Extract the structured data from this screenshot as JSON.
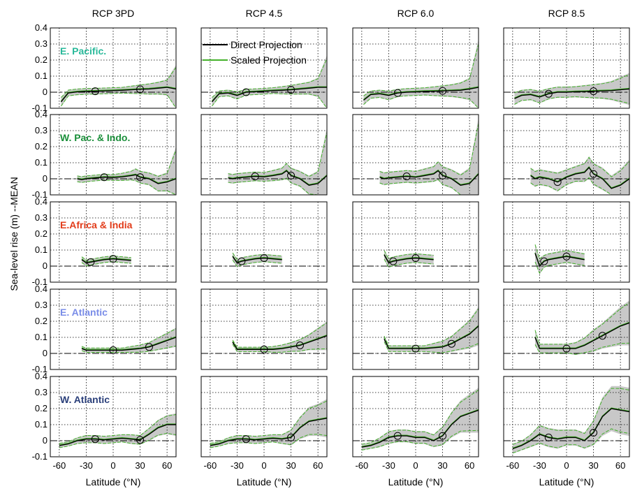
{
  "chart_data": {
    "type": "line",
    "layout": "small-multiples grid (5 regions x 4 scenarios)",
    "columns": [
      "RCP 3PD",
      "RCP 4.5",
      "RCP 6.0",
      "RCP 8.5"
    ],
    "ylabel": "Sea-level rise (m) --MEAN",
    "xlabel": "Latitude (°N)",
    "xlim": [
      -70,
      70
    ],
    "xticks": [
      -60,
      -30,
      0,
      30,
      60
    ],
    "xticklabels": [
      "-60",
      "-30",
      "0",
      "30",
      "60"
    ],
    "ylim_default": [
      -0.1,
      0.4
    ],
    "yticks": [
      -0.1,
      0,
      0.1,
      0.2,
      0.3,
      0.4
    ],
    "yticklabels": [
      "-0.1",
      "0",
      "0.1",
      "0.2",
      "0.3",
      "0.4"
    ],
    "grid": true,
    "legend": {
      "placement": "top (RCP 4.5 panel, row 1)",
      "entries": [
        {
          "name": "Direct Projection",
          "color": "#000000"
        },
        {
          "name": "Scaled Projection",
          "color": "#44b12b"
        }
      ]
    },
    "colors": {
      "direct": "#000000",
      "scaled": "#44b12b",
      "band": "#c8c8c8",
      "ref_line": "#000000"
    },
    "rows": [
      {
        "region": "E. Pacific.",
        "region_color": "#29b99a",
        "panels": [
          {
            "scenario": "RCP 3PD",
            "x": [
              -58,
              -50,
              -40,
              -30,
              -20,
              -10,
              0,
              10,
              20,
              30,
              40,
              50,
              60,
              70
            ],
            "y": [
              -0.06,
              -0.005,
              0.002,
              0.005,
              0.006,
              0.008,
              0.01,
              0.012,
              0.015,
              0.018,
              0.02,
              0.025,
              0.03,
              0.02
            ],
            "band": [
              0.03,
              0.02,
              0.02,
              0.02,
              0.02,
              0.02,
              0.02,
              0.02,
              0.025,
              0.03,
              0.035,
              0.04,
              0.05,
              0.15
            ]
          },
          {
            "scenario": "RCP 4.5",
            "x": [
              -58,
              -50,
              -40,
              -30,
              -20,
              -10,
              0,
              10,
              20,
              30,
              40,
              50,
              60,
              70
            ],
            "y": [
              -0.06,
              -0.01,
              -0.005,
              -0.02,
              0.0,
              0.003,
              0.006,
              0.01,
              0.012,
              0.015,
              0.02,
              0.025,
              0.03,
              0.03
            ],
            "band": [
              0.03,
              0.02,
              0.02,
              0.025,
              0.02,
              0.02,
              0.02,
              0.02,
              0.025,
              0.03,
              0.035,
              0.04,
              0.06,
              0.2
            ]
          },
          {
            "scenario": "RCP 6.0",
            "x": [
              -58,
              -50,
              -40,
              -30,
              -20,
              -10,
              0,
              10,
              20,
              30,
              40,
              50,
              60,
              70
            ],
            "y": [
              -0.05,
              -0.015,
              -0.01,
              -0.02,
              -0.005,
              0.0,
              0.002,
              0.005,
              0.006,
              0.008,
              0.01,
              0.012,
              0.02,
              0.03
            ],
            "band": [
              0.03,
              0.025,
              0.025,
              0.03,
              0.025,
              0.025,
              0.025,
              0.025,
              0.03,
              0.035,
              0.04,
              0.05,
              0.07,
              0.3
            ]
          },
          {
            "scenario": "RCP 8.5",
            "x": [
              -58,
              -50,
              -40,
              -30,
              -20,
              -10,
              0,
              10,
              20,
              30,
              40,
              50,
              60,
              70
            ],
            "y": [
              -0.04,
              -0.02,
              -0.015,
              -0.03,
              -0.01,
              0.0,
              0.0,
              0.003,
              0.004,
              0.006,
              0.008,
              0.01,
              0.015,
              0.02
            ],
            "band": [
              0.04,
              0.035,
              0.035,
              0.04,
              0.035,
              0.035,
              0.035,
              0.035,
              0.04,
              0.045,
              0.05,
              0.06,
              0.08,
              0.1
            ]
          }
        ]
      },
      {
        "region": "W. Pac. & Indo.",
        "region_color": "#1a8f3a",
        "panels": [
          {
            "scenario": "RCP 3PD",
            "x": [
              -40,
              -35,
              -30,
              -20,
              -10,
              0,
              10,
              20,
              25,
              30,
              40,
              50,
              60,
              70
            ],
            "y": [
              0.0,
              -0.005,
              0.0,
              0.005,
              0.01,
              0.008,
              0.012,
              0.02,
              0.025,
              0.01,
              0.0,
              -0.03,
              -0.02,
              0.0
            ],
            "band": [
              0.02,
              0.02,
              0.02,
              0.02,
              0.02,
              0.02,
              0.025,
              0.03,
              0.04,
              0.04,
              0.04,
              0.05,
              0.06,
              0.2
            ]
          },
          {
            "scenario": "RCP 4.5",
            "x": [
              -40,
              -35,
              -30,
              -20,
              -10,
              0,
              10,
              20,
              25,
              30,
              40,
              50,
              60,
              70
            ],
            "y": [
              0.005,
              0.0,
              0.005,
              0.01,
              0.015,
              0.012,
              0.02,
              0.03,
              0.05,
              0.02,
              0.0,
              -0.04,
              -0.03,
              0.02
            ],
            "band": [
              0.03,
              0.03,
              0.03,
              0.03,
              0.03,
              0.03,
              0.035,
              0.04,
              0.05,
              0.05,
              0.05,
              0.06,
              0.08,
              0.3
            ]
          },
          {
            "scenario": "RCP 6.0",
            "x": [
              -40,
              -35,
              -30,
              -20,
              -10,
              0,
              10,
              20,
              25,
              30,
              40,
              50,
              60,
              70
            ],
            "y": [
              0.01,
              0.0,
              0.005,
              0.01,
              0.015,
              0.01,
              0.02,
              0.03,
              0.05,
              0.02,
              0.0,
              -0.04,
              -0.03,
              0.03
            ],
            "band": [
              0.04,
              0.04,
              0.04,
              0.04,
              0.04,
              0.04,
              0.045,
              0.05,
              0.06,
              0.06,
              0.06,
              0.07,
              0.1,
              0.35
            ]
          },
          {
            "scenario": "RCP 8.5",
            "x": [
              -40,
              -35,
              -30,
              -20,
              -10,
              0,
              10,
              20,
              25,
              30,
              40,
              50,
              60,
              70
            ],
            "y": [
              0.02,
              0.0,
              0.01,
              0.0,
              -0.02,
              0.01,
              0.03,
              0.04,
              0.07,
              0.03,
              0.0,
              -0.06,
              -0.04,
              0.0
            ],
            "band": [
              0.05,
              0.05,
              0.05,
              0.05,
              0.06,
              0.05,
              0.05,
              0.06,
              0.07,
              0.07,
              0.07,
              0.08,
              0.1,
              0.12
            ]
          }
        ]
      },
      {
        "region": "E.Africa & India",
        "region_color": "#e23c1a",
        "panels": [
          {
            "scenario": "RCP 3PD",
            "x": [
              -35,
              -30,
              -25,
              -20,
              -10,
              0,
              10,
              20
            ],
            "y": [
              0.04,
              0.02,
              0.025,
              0.03,
              0.04,
              0.045,
              0.04,
              0.035
            ],
            "band": [
              0.02,
              0.02,
              0.02,
              0.02,
              0.02,
              0.02,
              0.02,
              0.02
            ]
          },
          {
            "scenario": "RCP 4.5",
            "x": [
              -35,
              -30,
              -25,
              -20,
              -10,
              0,
              10,
              20
            ],
            "y": [
              0.06,
              0.02,
              0.03,
              0.035,
              0.045,
              0.05,
              0.045,
              0.04
            ],
            "band": [
              0.025,
              0.025,
              0.025,
              0.025,
              0.025,
              0.025,
              0.025,
              0.025
            ]
          },
          {
            "scenario": "RCP 6.0",
            "x": [
              -35,
              -30,
              -25,
              -20,
              -10,
              0,
              10,
              20
            ],
            "y": [
              0.07,
              0.02,
              0.03,
              0.035,
              0.045,
              0.05,
              0.045,
              0.04
            ],
            "band": [
              0.03,
              0.03,
              0.03,
              0.03,
              0.03,
              0.03,
              0.03,
              0.03
            ]
          },
          {
            "scenario": "RCP 8.5",
            "x": [
              -35,
              -30,
              -25,
              -20,
              -10,
              0,
              10,
              20
            ],
            "y": [
              0.08,
              0.0,
              0.03,
              0.04,
              0.05,
              0.06,
              0.05,
              0.04
            ],
            "band": [
              0.06,
              0.05,
              0.04,
              0.04,
              0.04,
              0.04,
              0.04,
              0.04
            ]
          }
        ]
      },
      {
        "region": "E. Atlantic",
        "region_color": "#7a8de8",
        "panels": [
          {
            "scenario": "RCP 3PD",
            "x": [
              -35,
              -30,
              -20,
              -10,
              0,
              10,
              20,
              30,
              40,
              50,
              60,
              70
            ],
            "y": [
              0.03,
              0.02,
              0.02,
              0.02,
              0.02,
              0.02,
              0.025,
              0.03,
              0.04,
              0.06,
              0.08,
              0.1
            ],
            "band": [
              0.015,
              0.015,
              0.015,
              0.015,
              0.015,
              0.015,
              0.02,
              0.025,
              0.03,
              0.04,
              0.05,
              0.06
            ]
          },
          {
            "scenario": "RCP 4.5",
            "x": [
              -35,
              -30,
              -20,
              -10,
              0,
              10,
              20,
              30,
              40,
              50,
              60,
              70
            ],
            "y": [
              0.07,
              0.025,
              0.025,
              0.025,
              0.025,
              0.025,
              0.03,
              0.04,
              0.05,
              0.07,
              0.09,
              0.11
            ],
            "band": [
              0.015,
              0.015,
              0.015,
              0.015,
              0.015,
              0.02,
              0.025,
              0.03,
              0.04,
              0.05,
              0.07,
              0.09
            ]
          },
          {
            "scenario": "RCP 6.0",
            "x": [
              -35,
              -30,
              -20,
              -10,
              0,
              10,
              20,
              30,
              40,
              50,
              60,
              70
            ],
            "y": [
              0.09,
              0.03,
              0.03,
              0.03,
              0.03,
              0.03,
              0.035,
              0.04,
              0.06,
              0.09,
              0.12,
              0.17
            ],
            "band": [
              0.02,
              0.02,
              0.02,
              0.02,
              0.02,
              0.02,
              0.03,
              0.04,
              0.05,
              0.07,
              0.09,
              0.12
            ]
          },
          {
            "scenario": "RCP 8.5",
            "x": [
              -35,
              -30,
              -20,
              -10,
              0,
              10,
              20,
              30,
              40,
              50,
              60,
              70
            ],
            "y": [
              0.1,
              0.03,
              0.03,
              0.03,
              0.03,
              0.03,
              0.05,
              0.08,
              0.11,
              0.14,
              0.17,
              0.19
            ],
            "band": [
              0.05,
              0.03,
              0.03,
              0.03,
              0.03,
              0.04,
              0.05,
              0.07,
              0.08,
              0.1,
              0.12,
              0.14
            ]
          }
        ]
      },
      {
        "region": "W. Atlantic",
        "region_color": "#2a3f7a",
        "panels": [
          {
            "scenario": "RCP 3PD",
            "x": [
              -60,
              -50,
              -40,
              -30,
              -20,
              -10,
              0,
              10,
              20,
              30,
              40,
              50,
              60,
              70
            ],
            "y": [
              -0.03,
              -0.02,
              0.0,
              0.01,
              0.01,
              0.005,
              0.01,
              0.015,
              0.01,
              0.005,
              0.04,
              0.08,
              0.1,
              0.1
            ],
            "band": [
              0.015,
              0.015,
              0.02,
              0.025,
              0.025,
              0.025,
              0.025,
              0.025,
              0.03,
              0.03,
              0.04,
              0.05,
              0.06,
              0.07
            ]
          },
          {
            "scenario": "RCP 4.5",
            "x": [
              -60,
              -50,
              -40,
              -30,
              -20,
              -10,
              0,
              10,
              20,
              30,
              40,
              50,
              60,
              70
            ],
            "y": [
              -0.03,
              -0.02,
              0.0,
              0.01,
              0.01,
              0.005,
              0.01,
              0.015,
              0.01,
              0.02,
              0.08,
              0.12,
              0.13,
              0.14
            ],
            "band": [
              0.015,
              0.015,
              0.02,
              0.025,
              0.025,
              0.025,
              0.025,
              0.025,
              0.03,
              0.05,
              0.07,
              0.09,
              0.1,
              0.12
            ]
          },
          {
            "scenario": "RCP 6.0",
            "x": [
              -60,
              -50,
              -40,
              -30,
              -20,
              -10,
              0,
              10,
              20,
              30,
              40,
              50,
              60,
              70
            ],
            "y": [
              -0.04,
              -0.03,
              -0.01,
              0.02,
              0.03,
              0.03,
              0.02,
              0.02,
              0.0,
              0.03,
              0.1,
              0.15,
              0.17,
              0.19
            ],
            "band": [
              0.02,
              0.02,
              0.03,
              0.04,
              0.04,
              0.04,
              0.04,
              0.04,
              0.04,
              0.06,
              0.08,
              0.1,
              0.12,
              0.14
            ]
          },
          {
            "scenario": "RCP 8.5",
            "x": [
              -60,
              -50,
              -40,
              -30,
              -20,
              -10,
              0,
              10,
              20,
              30,
              40,
              50,
              60,
              70
            ],
            "y": [
              -0.05,
              -0.03,
              0.0,
              0.04,
              0.02,
              0.01,
              0.02,
              0.02,
              0.0,
              0.05,
              0.15,
              0.2,
              0.19,
              0.18
            ],
            "band": [
              0.03,
              0.03,
              0.04,
              0.06,
              0.06,
              0.06,
              0.05,
              0.05,
              0.05,
              0.08,
              0.12,
              0.14,
              0.15,
              0.15
            ]
          }
        ]
      }
    ]
  }
}
